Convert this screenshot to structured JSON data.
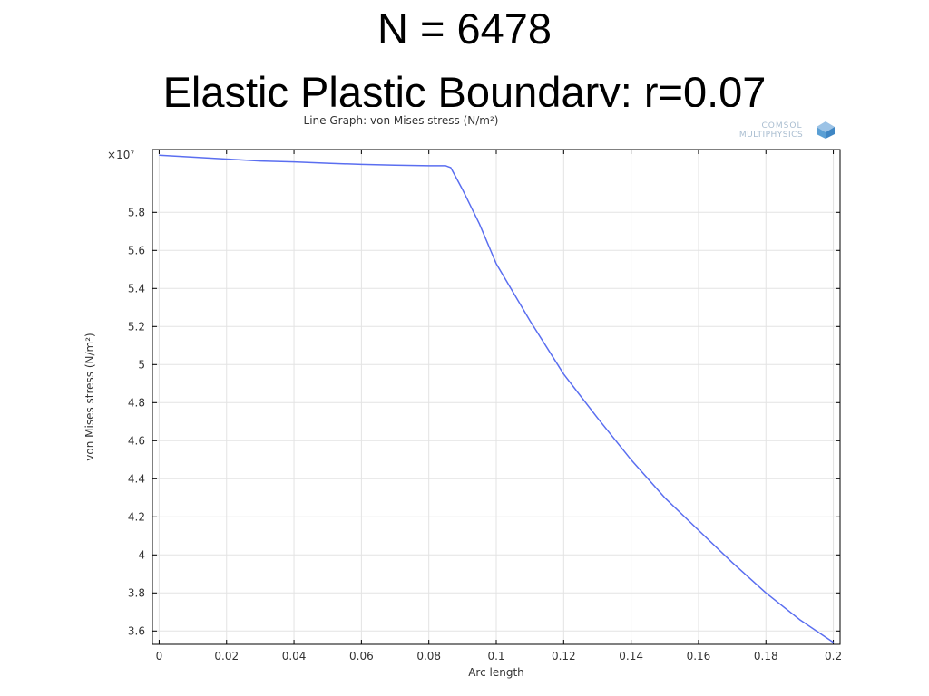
{
  "slide": {
    "title_line1": "N = 6478",
    "title_line2": "Elastic Plastic Boundary: r=0.07"
  },
  "logo": {
    "line1": "COMSOL",
    "line2": "MULTIPHYSICS"
  },
  "chart_data": {
    "type": "line",
    "title": "Line Graph: von Mises stress (N/m²)",
    "xlabel": "Arc length",
    "ylabel": "von Mises stress (N/m²)",
    "y_multiplier": "×10⁷",
    "xlim": [
      -0.002,
      0.202
    ],
    "ylim": [
      3.53,
      6.13
    ],
    "x_ticks": [
      0,
      0.02,
      0.04,
      0.06,
      0.08,
      0.1,
      0.12,
      0.14,
      0.16,
      0.18,
      0.2
    ],
    "x_tick_labels": [
      "0",
      "0.02",
      "0.04",
      "0.06",
      "0.08",
      "0.1",
      "0.12",
      "0.14",
      "0.16",
      "0.18",
      "0.2"
    ],
    "y_ticks": [
      3.6,
      3.8,
      4.0,
      4.2,
      4.4,
      4.6,
      4.8,
      5.0,
      5.2,
      5.4,
      5.6,
      5.8
    ],
    "y_tick_labels": [
      "3.6",
      "3.8",
      "4",
      "4.2",
      "4.4",
      "4.6",
      "4.8",
      "5",
      "5.2",
      "5.4",
      "5.6",
      "5.8"
    ],
    "grid": true,
    "series": [
      {
        "color": "#5a6ef0",
        "x": [
          0,
          0.01,
          0.02,
          0.03,
          0.04,
          0.05,
          0.06,
          0.07,
          0.08,
          0.085,
          0.0865,
          0.09,
          0.095,
          0.1,
          0.11,
          0.12,
          0.13,
          0.14,
          0.15,
          0.16,
          0.17,
          0.18,
          0.19,
          0.2
        ],
        "y": [
          6.1,
          6.09,
          6.08,
          6.07,
          6.065,
          6.058,
          6.052,
          6.048,
          6.045,
          6.045,
          6.035,
          5.92,
          5.74,
          5.53,
          5.23,
          4.95,
          4.72,
          4.5,
          4.3,
          4.13,
          3.96,
          3.8,
          3.66,
          3.54
        ]
      }
    ]
  }
}
